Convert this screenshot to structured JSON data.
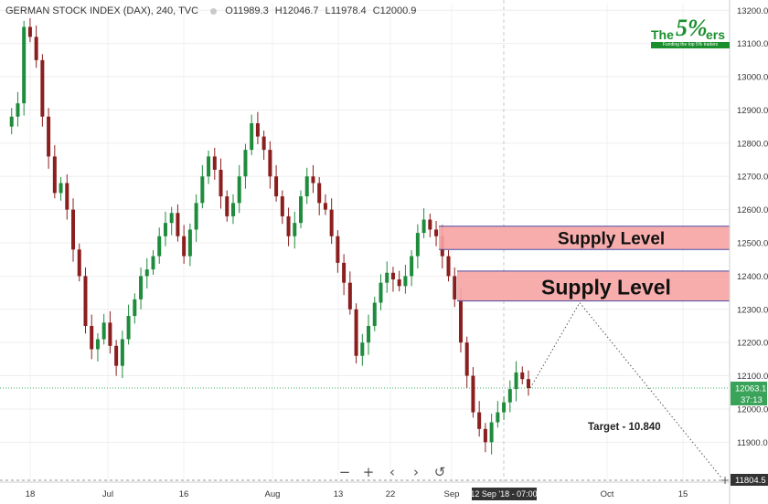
{
  "header": {
    "symbol": "GERMAN STOCK INDEX (DAX), 240, TVC",
    "open": "O11989.3",
    "high": "H12046.7",
    "low": "L11978.4",
    "close": "C12000.9"
  },
  "logo": {
    "the": "The",
    "five": "5%",
    "ers": "ers",
    "tagline": "Funding the top 5% traders"
  },
  "toolbar": {
    "zoom_out": "−",
    "zoom_in": "+",
    "scroll_left": "‹",
    "scroll_right": "›",
    "reset": "↺"
  },
  "colors": {
    "up": "#1e8c3c",
    "down": "#8b1e1e",
    "zone_fill": "#f7a4a4",
    "zone_border": "#4b4ba0",
    "price_line": "#3bb06a",
    "axis_text": "#333333"
  },
  "chart_data": {
    "type": "candlestick",
    "y_ticks": [
      "13200.0",
      "13100.0",
      "13000.0",
      "12900.0",
      "12800.0",
      "12700.0",
      "12600.0",
      "12500.0",
      "12400.0",
      "12300.0",
      "12200.0",
      "12100.0",
      "12000.0",
      "11900.0"
    ],
    "ylim": [
      11780,
      13220
    ],
    "x_ticks": [
      "18",
      "Jul",
      "16",
      "Aug",
      "13",
      "22",
      "Sep",
      "Oct",
      "15"
    ],
    "current_price": {
      "label": "12063.1",
      "countdown": "37:13",
      "value": 12063.1
    },
    "bottom_marker": {
      "label": "11804.5",
      "value": 11804.5
    },
    "crosshair_date": "12 Sep '18 - 07:00",
    "zones": [
      {
        "label": "Supply Level",
        "top": 12550,
        "bottom": 12480
      },
      {
        "label": "Supply Level",
        "top": 12415,
        "bottom": 12325
      }
    ],
    "projection": {
      "label": "Target - 10.840",
      "points": [
        [
          12063,
          12063
        ],
        [
          12320,
          12320
        ],
        [
          11790,
          11790
        ]
      ]
    },
    "series": [
      12850,
      12880,
      12920,
      13150,
      13120,
      13050,
      12880,
      12760,
      12650,
      12680,
      12600,
      12480,
      12400,
      12250,
      12180,
      12210,
      12260,
      12190,
      12130,
      12210,
      12280,
      12330,
      12400,
      12420,
      12460,
      12520,
      12560,
      12590,
      12520,
      12460,
      12540,
      12620,
      12700,
      12760,
      12720,
      12640,
      12580,
      12620,
      12700,
      12780,
      12860,
      12820,
      12780,
      12700,
      12640,
      12580,
      12520,
      12560,
      12640,
      12700,
      12680,
      12620,
      12600,
      12520,
      12440,
      12380,
      12300,
      12160,
      12200,
      12250,
      12320,
      12380,
      12410,
      12390,
      12370,
      12400,
      12460,
      12530,
      12570,
      12540,
      12520,
      12460,
      12400,
      12330,
      12200,
      12100,
      11990,
      11940,
      11900,
      11960,
      11990,
      12020,
      12060,
      12110,
      12090,
      12063
    ]
  }
}
